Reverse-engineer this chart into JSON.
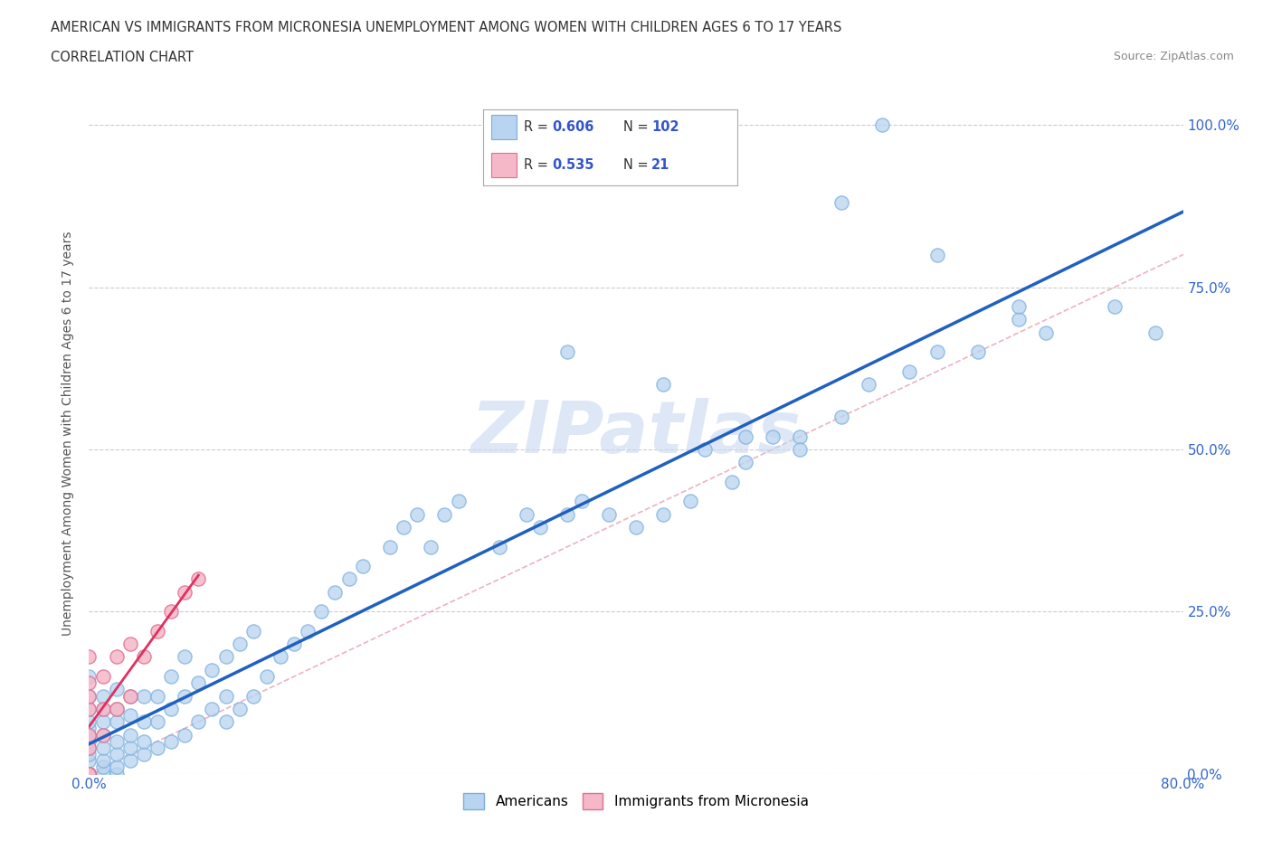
{
  "title_line1": "AMERICAN VS IMMIGRANTS FROM MICRONESIA UNEMPLOYMENT AMONG WOMEN WITH CHILDREN AGES 6 TO 17 YEARS",
  "title_line2": "CORRELATION CHART",
  "source_text": "Source: ZipAtlas.com",
  "ylabel": "Unemployment Among Women with Children Ages 6 to 17 years",
  "xlim": [
    0.0,
    0.8
  ],
  "ylim": [
    0.0,
    1.05
  ],
  "ytick_labels": [
    "0.0%",
    "25.0%",
    "50.0%",
    "75.0%",
    "100.0%"
  ],
  "ytick_values": [
    0.0,
    0.25,
    0.5,
    0.75,
    1.0
  ],
  "american_color": "#b8d4f0",
  "american_edge": "#7aaedd",
  "micronesia_color": "#f5b8c8",
  "micronesia_edge": "#e07090",
  "trend_american_color": "#2060c0",
  "trend_micronesia_color": "#e03060",
  "diagonal_color": "#e8a0b0",
  "R_american": 0.606,
  "N_american": 102,
  "R_micronesia": 0.535,
  "N_micronesia": 21,
  "legend_R_color": "#3355cc",
  "watermark_color": "#c8d8f0",
  "americans_x": [
    0.0,
    0.0,
    0.0,
    0.0,
    0.0,
    0.0,
    0.0,
    0.0,
    0.0,
    0.0,
    0.0,
    0.0,
    0.0,
    0.0,
    0.0,
    0.0,
    0.0,
    0.0,
    0.0,
    0.0,
    0.01,
    0.01,
    0.01,
    0.01,
    0.01,
    0.01,
    0.01,
    0.01,
    0.02,
    0.02,
    0.02,
    0.02,
    0.02,
    0.02,
    0.02,
    0.03,
    0.03,
    0.03,
    0.03,
    0.03,
    0.04,
    0.04,
    0.04,
    0.04,
    0.05,
    0.05,
    0.05,
    0.06,
    0.06,
    0.06,
    0.07,
    0.07,
    0.07,
    0.08,
    0.08,
    0.09,
    0.09,
    0.1,
    0.1,
    0.1,
    0.11,
    0.11,
    0.12,
    0.12,
    0.13,
    0.14,
    0.15,
    0.16,
    0.17,
    0.18,
    0.19,
    0.2,
    0.22,
    0.23,
    0.24,
    0.25,
    0.26,
    0.27,
    0.3,
    0.32,
    0.33,
    0.35,
    0.36,
    0.38,
    0.4,
    0.42,
    0.44,
    0.45,
    0.47,
    0.48,
    0.5,
    0.52,
    0.55,
    0.57,
    0.6,
    0.62,
    0.65,
    0.68,
    0.7,
    0.75,
    0.78
  ],
  "americans_y": [
    0.0,
    0.0,
    0.0,
    0.0,
    0.0,
    0.0,
    0.0,
    0.0,
    0.0,
    0.0,
    0.02,
    0.03,
    0.04,
    0.05,
    0.06,
    0.07,
    0.08,
    0.1,
    0.12,
    0.15,
    0.0,
    0.01,
    0.02,
    0.04,
    0.06,
    0.08,
    0.1,
    0.12,
    0.0,
    0.01,
    0.03,
    0.05,
    0.08,
    0.1,
    0.13,
    0.02,
    0.04,
    0.06,
    0.09,
    0.12,
    0.03,
    0.05,
    0.08,
    0.12,
    0.04,
    0.08,
    0.12,
    0.05,
    0.1,
    0.15,
    0.06,
    0.12,
    0.18,
    0.08,
    0.14,
    0.1,
    0.16,
    0.08,
    0.12,
    0.18,
    0.1,
    0.2,
    0.12,
    0.22,
    0.15,
    0.18,
    0.2,
    0.22,
    0.25,
    0.28,
    0.3,
    0.32,
    0.35,
    0.38,
    0.4,
    0.35,
    0.4,
    0.42,
    0.35,
    0.4,
    0.38,
    0.4,
    0.42,
    0.4,
    0.38,
    0.4,
    0.42,
    0.5,
    0.45,
    0.48,
    0.52,
    0.52,
    0.55,
    0.6,
    0.62,
    0.65,
    0.65,
    0.7,
    0.68,
    0.72,
    0.68
  ],
  "outlier_am_x": [
    0.35,
    0.42,
    0.48,
    0.52,
    0.55,
    0.58,
    0.62,
    0.68
  ],
  "outlier_am_y": [
    0.65,
    0.6,
    0.52,
    0.5,
    0.88,
    1.0,
    0.8,
    0.72
  ],
  "micronesia_x": [
    0.0,
    0.0,
    0.0,
    0.0,
    0.0,
    0.0,
    0.0,
    0.0,
    0.0,
    0.01,
    0.01,
    0.01,
    0.02,
    0.02,
    0.03,
    0.03,
    0.04,
    0.05,
    0.06,
    0.07,
    0.08
  ],
  "micronesia_y": [
    0.0,
    0.0,
    0.0,
    0.04,
    0.06,
    0.1,
    0.12,
    0.14,
    0.18,
    0.06,
    0.1,
    0.15,
    0.1,
    0.18,
    0.12,
    0.2,
    0.18,
    0.22,
    0.25,
    0.28,
    0.3
  ]
}
